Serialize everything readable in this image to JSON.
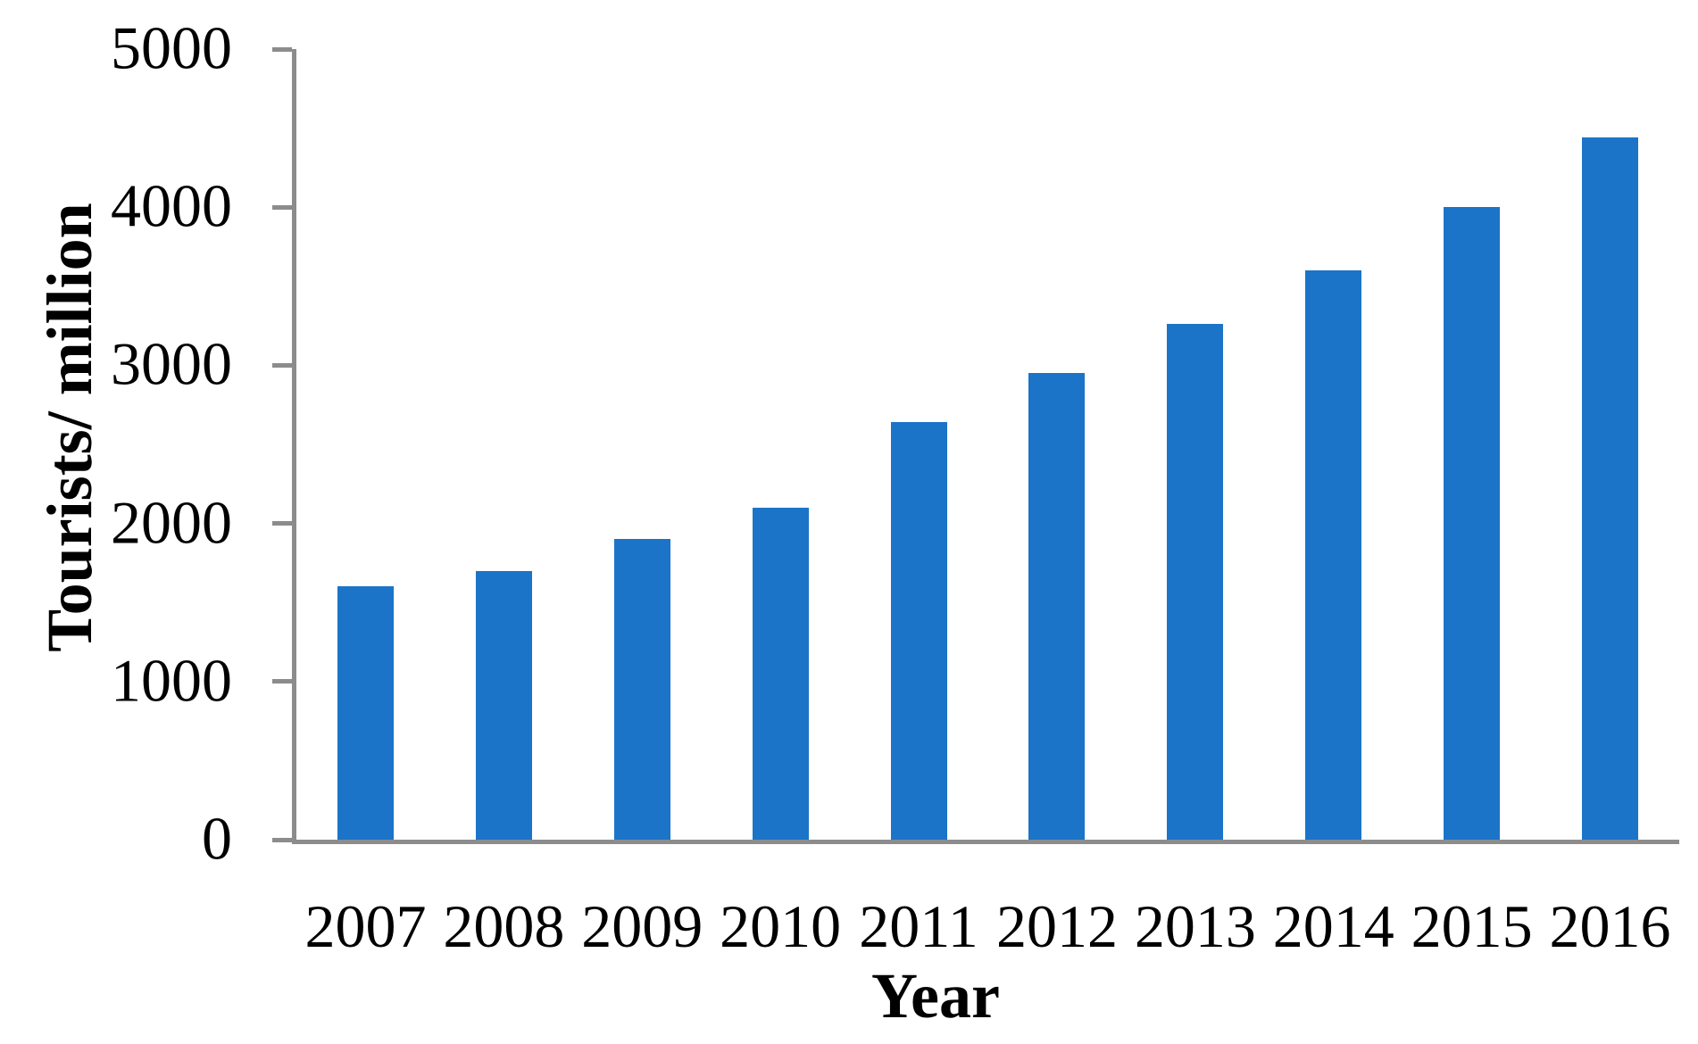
{
  "chart_data": {
    "type": "bar",
    "categories": [
      "2007",
      "2008",
      "2009",
      "2010",
      "2011",
      "2012",
      "2013",
      "2014",
      "2015",
      "2016"
    ],
    "values": [
      1600,
      1700,
      1900,
      2100,
      2640,
      2950,
      3260,
      3600,
      4000,
      4440
    ],
    "title": "",
    "xlabel": "Year",
    "ylabel": "Tourists/ million",
    "ylim": [
      0,
      5000
    ],
    "yticks": [
      0,
      1000,
      2000,
      3000,
      4000,
      5000
    ],
    "grid": false,
    "legend_position": "none",
    "bar_color": "#1B74C8",
    "axis_color": "#8C8C8C",
    "text_color": "#000000",
    "background_color": "#FFFFFF"
  }
}
